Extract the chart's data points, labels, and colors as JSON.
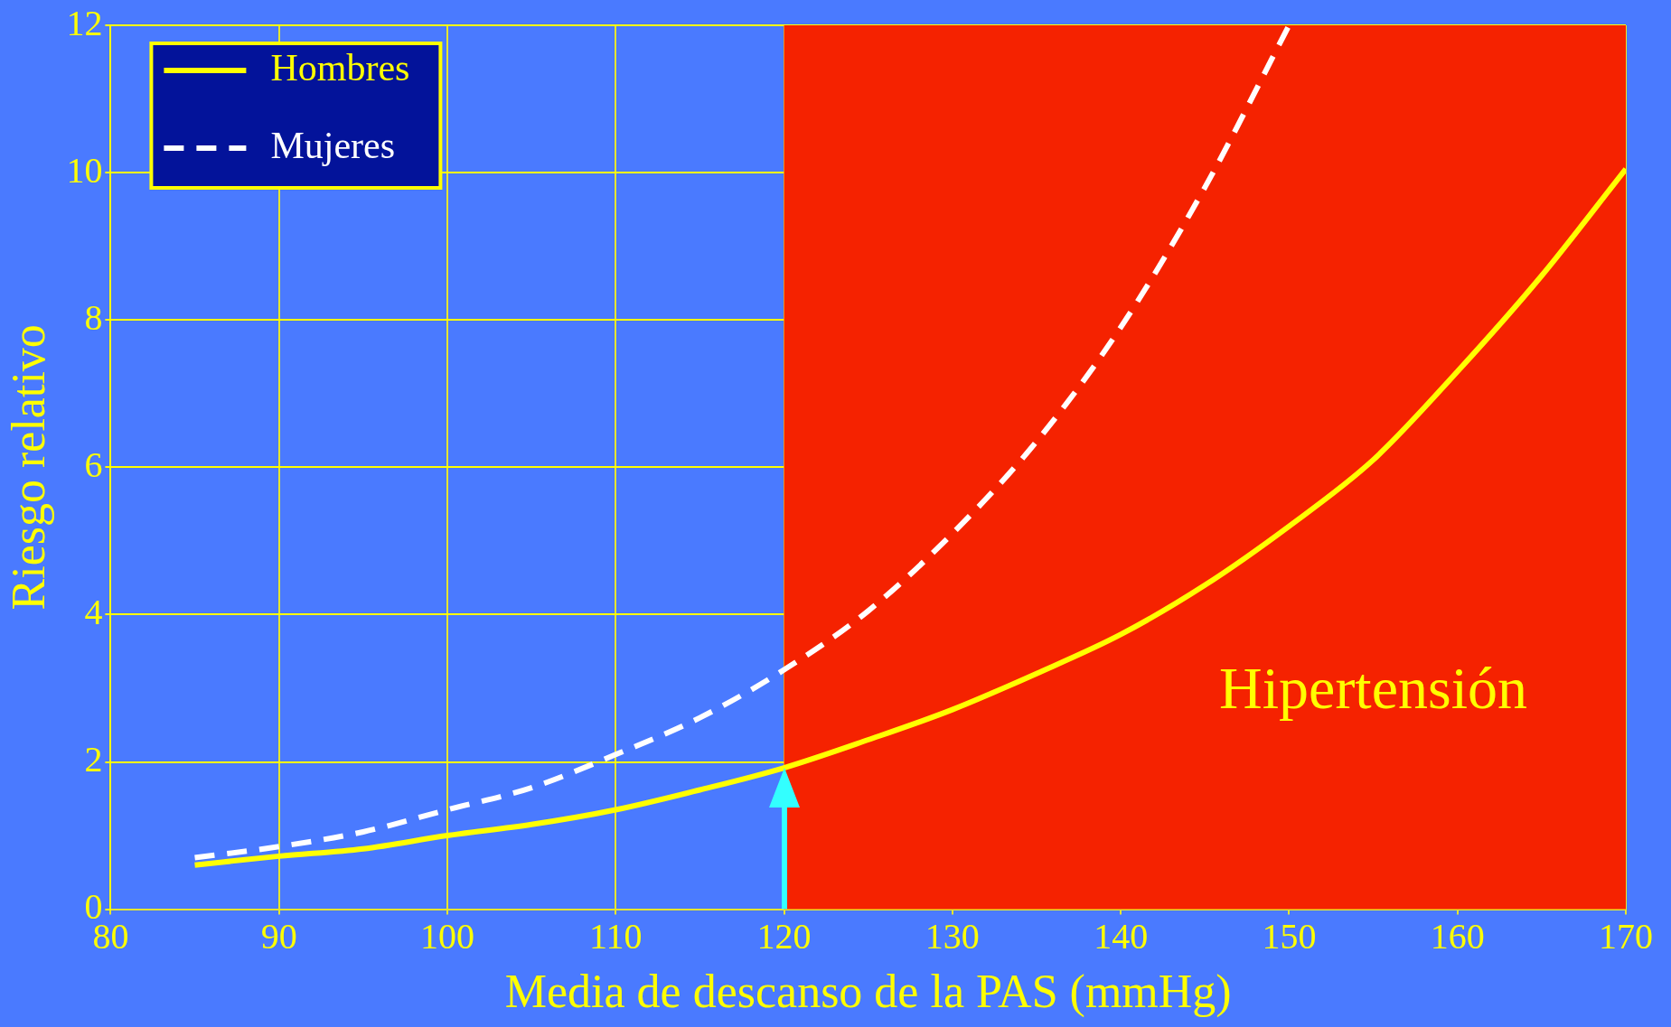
{
  "chart_data": {
    "type": "line",
    "xlabel": "Media de descanso de la PAS (mmHg)",
    "ylabel": "Riesgo relativo",
    "xlim": [
      80,
      170
    ],
    "xticks": [
      80,
      90,
      100,
      110,
      120,
      130,
      140,
      150,
      160,
      170
    ],
    "ylim": [
      0,
      12
    ],
    "yticks": [
      0,
      2,
      4,
      6,
      8,
      10,
      12
    ],
    "grid": true,
    "legend": "top left",
    "series": [
      {
        "name": "Hombres",
        "color": "#ffff00",
        "line_style": "solid",
        "x": [
          85,
          90,
          95,
          100,
          105,
          110,
          115,
          120,
          125,
          130,
          135,
          140,
          145,
          150,
          155,
          160,
          165,
          170
        ],
        "values": [
          0.6,
          0.72,
          0.82,
          1.0,
          1.15,
          1.35,
          1.62,
          1.92,
          2.3,
          2.71,
          3.2,
          3.73,
          4.4,
          5.2,
          6.1,
          7.3,
          8.6,
          10.05
        ]
      },
      {
        "name": "Mujeres",
        "color": "#ffffff",
        "line_style": "dashed",
        "x": [
          85,
          90,
          95,
          100,
          105,
          110,
          115,
          120,
          125,
          130,
          135,
          140,
          145,
          150
        ],
        "values": [
          0.7,
          0.85,
          1.05,
          1.35,
          1.65,
          2.1,
          2.6,
          3.25,
          4.05,
          5.1,
          6.35,
          7.9,
          9.8,
          12.0
        ]
      }
    ],
    "bands": [
      {
        "axis": "x",
        "from": 120,
        "to": 170,
        "label": "Hipertensión",
        "color": "#f52200"
      }
    ]
  }
}
